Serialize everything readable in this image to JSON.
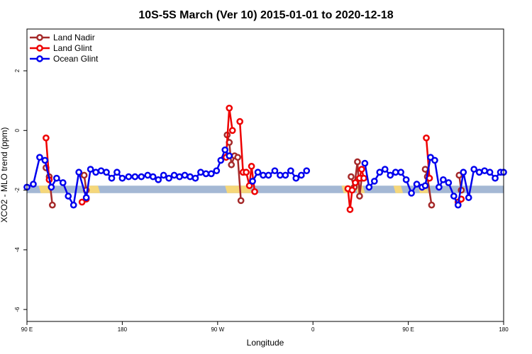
{
  "chart_data": {
    "type": "line",
    "title": "10S-5S March (Ver 10)   2015-01-01 to 2020-12-18",
    "xlabel": "Longitude",
    "ylabel": "XCO2 - MLO trend (ppm)",
    "xlim": [
      90,
      540
    ],
    "ylim": [
      -6.4,
      3.4
    ],
    "x_ticks": [
      {
        "value": 90,
        "label": "90 E"
      },
      {
        "value": 180,
        "label": "180"
      },
      {
        "value": 270,
        "label": "90 W"
      },
      {
        "value": 360,
        "label": "0"
      },
      {
        "value": 450,
        "label": "90 E"
      },
      {
        "value": 540,
        "label": "180"
      }
    ],
    "y_ticks": [
      {
        "value": 2,
        "label": "2"
      },
      {
        "value": 0,
        "label": "0"
      },
      {
        "value": -2,
        "label": "-2"
      },
      {
        "value": -4,
        "label": "-4"
      },
      {
        "value": -6,
        "label": "-6"
      }
    ],
    "legend_position": "top-left",
    "surface_band": {
      "y_top": -1.85,
      "y_bottom": -2.1,
      "ocean_color": "#a4b8d4",
      "land_color": "#f5d77a",
      "land_ranges": [
        [
          101,
          110
        ],
        [
          147,
          157
        ],
        [
          277,
          300
        ],
        [
          387,
          397
        ],
        [
          400,
          407
        ],
        [
          436,
          443
        ],
        [
          459,
          467
        ]
      ]
    },
    "series": [
      {
        "name": "Land Nadir",
        "color": "#a52a2a",
        "segments": [
          [
            [
              108,
              -1.25
            ],
            [
              111,
              -1.55
            ],
            [
              114,
              -2.5
            ]
          ],
          [
            [
              144,
              -1.5
            ],
            [
              146,
              -2.0
            ]
          ],
          [
            [
              279,
              -0.15
            ],
            [
              281,
              -0.4
            ],
            [
              283,
              -1.15
            ],
            [
              286,
              -0.85
            ],
            [
              289,
              -0.9
            ],
            [
              292,
              -2.35
            ]
          ],
          [
            [
              396,
              -1.55
            ],
            [
              399,
              -1.9
            ],
            [
              402,
              -1.05
            ],
            [
              404,
              -2.2
            ],
            [
              406,
              -1.6
            ]
          ],
          [
            [
              466,
              -1.3
            ],
            [
              468,
              -1.55
            ],
            [
              472,
              -2.5
            ]
          ],
          [
            [
              498,
              -1.5
            ],
            [
              500,
              -2.0
            ]
          ]
        ]
      },
      {
        "name": "Land Glint",
        "color": "#ee0000",
        "segments": [
          [
            [
              108,
              -0.25
            ],
            [
              111,
              -1.65
            ]
          ],
          [
            [
              142,
              -2.4
            ],
            [
              146,
              -2.3
            ]
          ],
          [
            [
              278,
              -0.9
            ],
            [
              281,
              0.75
            ],
            [
              284,
              0.0
            ]
          ],
          [
            [
              291,
              0.3
            ],
            [
              294,
              -1.4
            ],
            [
              297,
              -1.4
            ],
            [
              300,
              -1.85
            ],
            [
              302,
              -1.2
            ],
            [
              305,
              -2.05
            ]
          ],
          [
            [
              393,
              -1.95
            ],
            [
              395,
              -2.65
            ],
            [
              397,
              -2.0
            ],
            [
              400,
              -1.75
            ],
            [
              404,
              -1.6
            ],
            [
              406,
              -1.3
            ],
            [
              408,
              -1.6
            ]
          ],
          [
            [
              467,
              -0.25
            ],
            [
              470,
              -1.6
            ]
          ],
          [
            [
              497,
              -2.4
            ],
            [
              500,
              -2.3
            ]
          ]
        ]
      },
      {
        "name": "Ocean Glint",
        "color": "#0000ee",
        "segments": [
          [
            [
              90,
              -1.9
            ],
            [
              96,
              -1.8
            ],
            [
              102,
              -0.9
            ],
            [
              107,
              -1.0
            ],
            [
              113,
              -1.9
            ],
            [
              118,
              -1.6
            ],
            [
              124,
              -1.75
            ],
            [
              129,
              -2.2
            ],
            [
              134,
              -2.5
            ],
            [
              139,
              -1.4
            ],
            [
              146,
              -2.25
            ],
            [
              150,
              -1.3
            ],
            [
              155,
              -1.4
            ],
            [
              160,
              -1.35
            ],
            [
              165,
              -1.4
            ],
            [
              170,
              -1.6
            ],
            [
              175,
              -1.4
            ],
            [
              180,
              -1.6
            ],
            [
              186,
              -1.55
            ],
            [
              192,
              -1.55
            ],
            [
              198,
              -1.55
            ],
            [
              204,
              -1.5
            ],
            [
              209,
              -1.55
            ],
            [
              214,
              -1.65
            ],
            [
              219,
              -1.5
            ],
            [
              224,
              -1.6
            ],
            [
              229,
              -1.5
            ],
            [
              234,
              -1.55
            ],
            [
              239,
              -1.5
            ],
            [
              244,
              -1.55
            ],
            [
              249,
              -1.6
            ],
            [
              254,
              -1.4
            ],
            [
              259,
              -1.45
            ],
            [
              264,
              -1.45
            ],
            [
              269,
              -1.35
            ],
            [
              273,
              -1.0
            ],
            [
              277,
              -0.65
            ],
            [
              281,
              -0.85
            ]
          ],
          [
            [
              303,
              -1.7
            ],
            [
              308,
              -1.4
            ],
            [
              313,
              -1.5
            ],
            [
              318,
              -1.5
            ],
            [
              324,
              -1.35
            ],
            [
              329,
              -1.5
            ],
            [
              334,
              -1.5
            ],
            [
              339,
              -1.35
            ],
            [
              344,
              -1.6
            ],
            [
              349,
              -1.5
            ],
            [
              354,
              -1.35
            ]
          ],
          [
            [
              409,
              -1.1
            ],
            [
              413,
              -1.9
            ],
            [
              418,
              -1.7
            ],
            [
              423,
              -1.4
            ],
            [
              428,
              -1.3
            ],
            [
              433,
              -1.5
            ],
            [
              438,
              -1.4
            ],
            [
              443,
              -1.4
            ],
            [
              448,
              -1.65
            ],
            [
              453,
              -2.1
            ],
            [
              458,
              -1.8
            ],
            [
              463,
              -1.9
            ],
            [
              466,
              -1.85
            ],
            [
              471,
              -0.9
            ],
            [
              475,
              -1.0
            ],
            [
              479,
              -1.9
            ],
            [
              483,
              -1.65
            ],
            [
              488,
              -1.75
            ],
            [
              493,
              -2.2
            ],
            [
              497,
              -2.5
            ],
            [
              502,
              -1.4
            ],
            [
              507,
              -2.25
            ],
            [
              512,
              -1.3
            ],
            [
              517,
              -1.4
            ],
            [
              522,
              -1.35
            ],
            [
              527,
              -1.4
            ],
            [
              532,
              -1.6
            ],
            [
              537,
              -1.4
            ],
            [
              540,
              -1.4
            ]
          ]
        ]
      }
    ]
  }
}
